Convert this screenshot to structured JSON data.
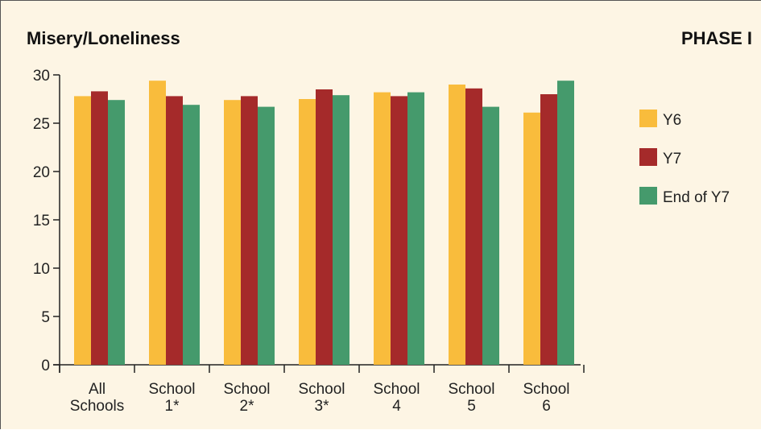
{
  "header": {
    "title": "Misery/Loneliness",
    "phase_label": "PHASE I"
  },
  "colors": {
    "background": "#fdf5e4",
    "series": [
      "#f9bc3c",
      "#a52a2a",
      "#459a6c"
    ]
  },
  "chart_data": {
    "type": "bar",
    "title": "Misery/Loneliness",
    "xlabel": "",
    "ylabel": "",
    "categories": [
      [
        "All",
        "Schools"
      ],
      [
        "School",
        "1*"
      ],
      [
        "School",
        "2*"
      ],
      [
        "School",
        "3*"
      ],
      [
        "School",
        "4"
      ],
      [
        "School",
        "5"
      ],
      [
        "School",
        "6"
      ]
    ],
    "series": [
      {
        "name": "Y6",
        "values": [
          27.8,
          29.4,
          27.4,
          27.5,
          28.2,
          29.0,
          26.1
        ]
      },
      {
        "name": "Y7",
        "values": [
          28.3,
          27.8,
          27.8,
          28.5,
          27.8,
          28.6,
          28.0
        ]
      },
      {
        "name": "End of Y7",
        "values": [
          27.4,
          26.9,
          26.7,
          27.9,
          28.2,
          26.7,
          29.4
        ]
      }
    ],
    "ylim": [
      0,
      30
    ],
    "yticks": [
      0,
      5,
      10,
      15,
      20,
      25,
      30
    ],
    "grid": false,
    "legend_position": "right"
  }
}
